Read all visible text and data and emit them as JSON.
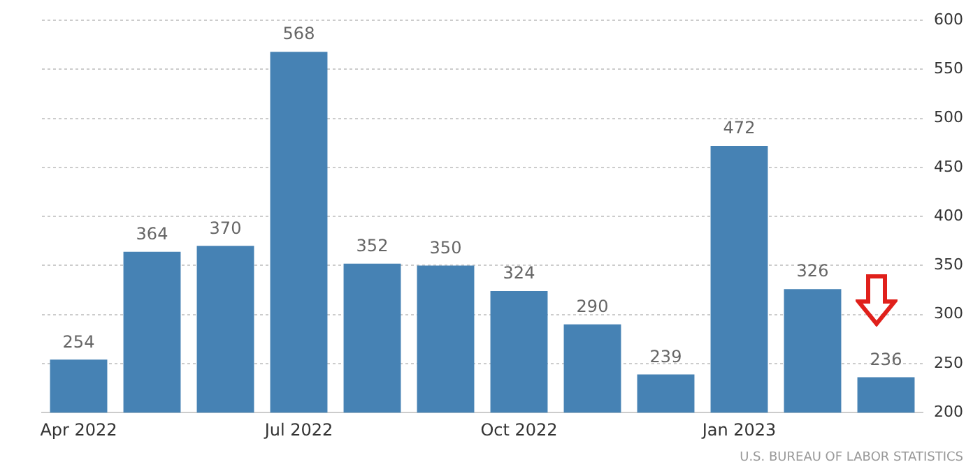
{
  "chart_data": {
    "type": "bar",
    "categories": [
      "Apr 2022",
      null,
      null,
      "Jul 2022",
      null,
      null,
      "Oct 2022",
      null,
      null,
      "Jan 2023",
      null,
      null
    ],
    "values": [
      254,
      364,
      370,
      568,
      352,
      350,
      324,
      290,
      239,
      472,
      326,
      236
    ],
    "color": "#4682b4",
    "ylim": [
      200,
      600
    ],
    "yticks": [
      200,
      250,
      300,
      350,
      400,
      450,
      500,
      550,
      600
    ],
    "grid": "y",
    "data_labels": true,
    "annotations": [
      "U.S. BUREAU OF LABOR STATISTICS"
    ]
  }
}
